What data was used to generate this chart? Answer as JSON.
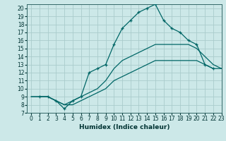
{
  "xlabel": "Humidex (Indice chaleur)",
  "background_color": "#cce8e8",
  "grid_color": "#aacccc",
  "line_color": "#006666",
  "xlim": [
    -0.5,
    23
  ],
  "ylim": [
    7,
    20.5
  ],
  "xticks": [
    0,
    1,
    2,
    3,
    4,
    5,
    6,
    7,
    8,
    9,
    10,
    11,
    12,
    13,
    14,
    15,
    16,
    17,
    18,
    19,
    20,
    21,
    22,
    23
  ],
  "yticks": [
    7,
    8,
    9,
    10,
    11,
    12,
    13,
    14,
    15,
    16,
    17,
    18,
    19,
    20
  ],
  "line_smooth1": {
    "x": [
      0,
      2,
      3,
      4,
      5,
      6,
      7,
      8,
      9,
      10,
      11,
      12,
      13,
      14,
      15,
      16,
      17,
      18,
      19,
      20,
      21,
      22,
      23
    ],
    "y": [
      9,
      9,
      8.5,
      8,
      8,
      8.5,
      9,
      9.5,
      10,
      11,
      11.5,
      12,
      12.5,
      13,
      13.5,
      13.5,
      13.5,
      13.5,
      13.5,
      13.5,
      13,
      12.5,
      12.5
    ]
  },
  "line_smooth2": {
    "x": [
      0,
      2,
      3,
      4,
      5,
      6,
      7,
      8,
      9,
      10,
      11,
      12,
      13,
      14,
      15,
      16,
      17,
      18,
      19,
      20,
      21,
      22,
      23
    ],
    "y": [
      9,
      9,
      8.5,
      8,
      8.5,
      9,
      9.5,
      10,
      11,
      12.5,
      13.5,
      14,
      14.5,
      15,
      15.5,
      15.5,
      15.5,
      15.5,
      15.5,
      15,
      14,
      13,
      12.5
    ]
  },
  "line_markers": {
    "x": [
      1,
      2,
      3,
      4,
      5,
      6,
      7,
      8,
      9,
      10,
      11,
      12,
      13,
      14,
      15,
      16,
      17,
      18,
      19,
      20,
      21,
      22
    ],
    "y": [
      9,
      9,
      8.5,
      7.5,
      8.5,
      9,
      12,
      12.5,
      13,
      15.5,
      17.5,
      18.5,
      19.5,
      20,
      20.5,
      18.5,
      17.5,
      17,
      16,
      15.5,
      13,
      12.5
    ]
  }
}
